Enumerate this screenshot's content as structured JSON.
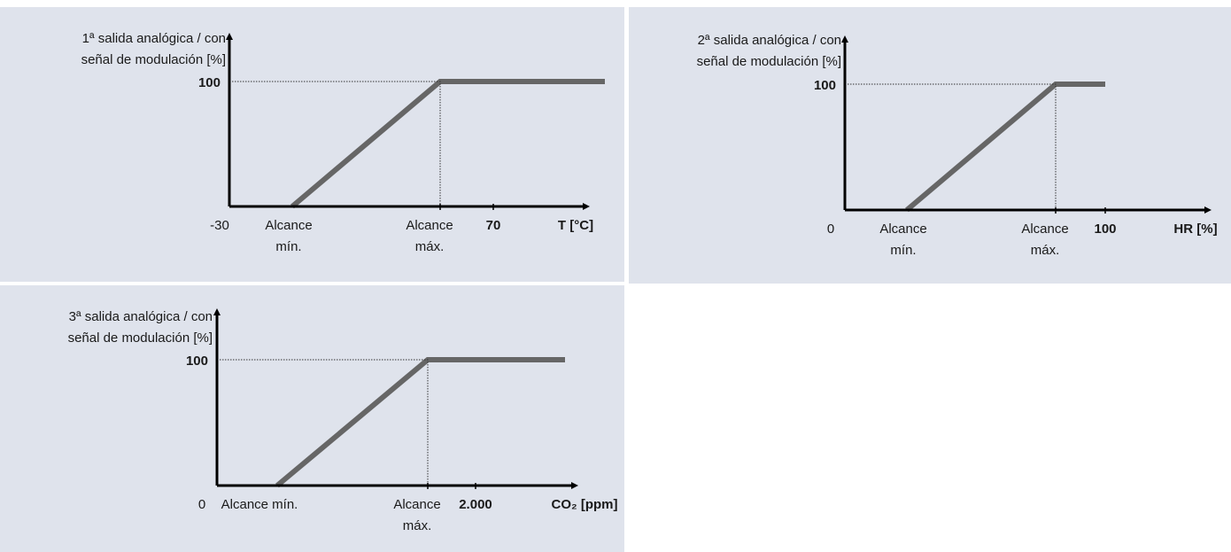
{
  "panels": [
    {
      "y_title": [
        "1ª salida analógica / con",
        "señal de modulación [%]"
      ],
      "y_max": "100",
      "x_start": "-30",
      "x_min": [
        "Alcance",
        "mín."
      ],
      "x_max": [
        "Alcance",
        "máx."
      ],
      "x_end": "70",
      "x_title": "T [°C]"
    },
    {
      "y_title": [
        "2ª salida analógica / con",
        "señal de modulación [%]"
      ],
      "y_max": "100",
      "x_start": "0",
      "x_min": [
        "Alcance",
        "mín."
      ],
      "x_max": [
        "Alcance",
        "máx."
      ],
      "x_end": "100",
      "x_title": "HR [%]"
    },
    {
      "y_title": [
        "3ª salida analógica / con",
        "señal de modulación [%]"
      ],
      "y_max": "100",
      "x_start": "0",
      "x_min": [
        "Alcance mín."
      ],
      "x_max": [
        "Alcance",
        "máx."
      ],
      "x_end": "2.000",
      "x_title": "CO₂ [ppm]"
    }
  ]
}
